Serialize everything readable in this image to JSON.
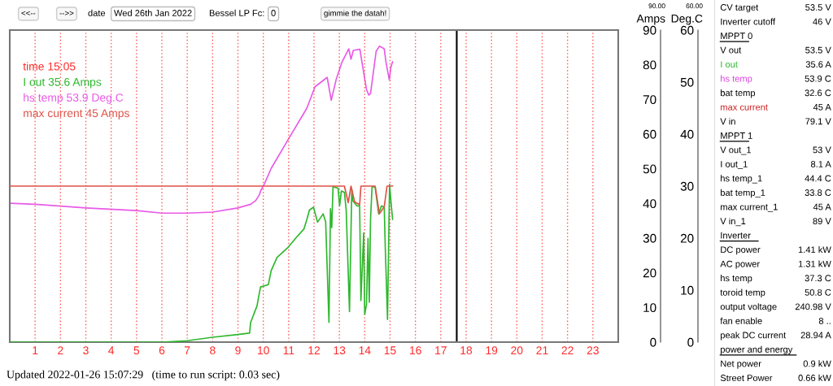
{
  "chart_data": [
    {
      "type": "line",
      "ylabel": "Amps",
      "y2label": "Deg.C",
      "legend_title": "time 15:05",
      "legend": "top left",
      "xlim": [
        0,
        24
      ],
      "xticks": [
        1,
        2,
        3,
        4,
        5,
        6,
        7,
        8,
        9,
        10,
        11,
        12,
        13,
        14,
        15,
        16,
        17,
        18,
        19,
        20,
        21,
        22,
        23
      ],
      "ylim": [
        0,
        90
      ],
      "yticks": [
        0,
        10,
        20,
        30,
        40,
        50,
        60,
        70,
        80,
        90
      ],
      "y2lim": [
        0,
        60
      ],
      "y2ticks": [
        0,
        10,
        20,
        30,
        40,
        50,
        60
      ],
      "grid": "x",
      "marker": "none",
      "line_style": "solid",
      "ref_lines": [
        {
          "axis": "x",
          "value": 17.63,
          "color": "#000000",
          "line_style": "solid"
        }
      ],
      "series": [
        {
          "name": "I out 35.6 Amps",
          "color": "#2db82d",
          "x": [
            0,
            6,
            7,
            8,
            9,
            9.46,
            9.5,
            9.75,
            9.89,
            10.2,
            10.31,
            10.54,
            10.96,
            11.28,
            11.6,
            11.72,
            11.82,
            11.98,
            12.14,
            12.36,
            12.46,
            12.59,
            12.65,
            12.7,
            12.75,
            12.95,
            13.01,
            13.08,
            13.2,
            13.27,
            13.4,
            13.49,
            13.53,
            13.69,
            13.8,
            13.85,
            13.96,
            14.0,
            14.07,
            14.13,
            14.18,
            14.23,
            14.29,
            14.41,
            14.55,
            14.66,
            14.77,
            14.81,
            14.9,
            14.98,
            15.05,
            15.1
          ],
          "values": [
            0,
            0,
            0.4,
            1.4,
            2.2,
            2.6,
            5.7,
            10.4,
            15.9,
            16.6,
            20.6,
            24.4,
            27.2,
            30,
            32.6,
            35.4,
            38.1,
            38.9,
            34.6,
            37,
            34.7,
            5.7,
            38.5,
            33,
            44.8,
            44.4,
            39.3,
            43.6,
            43.2,
            38,
            8.8,
            44,
            40.8,
            39.3,
            39.3,
            12,
            31.5,
            8,
            10.8,
            29.9,
            11.5,
            35.4,
            44.8,
            44.8,
            37,
            39.3,
            38.9,
            27.6,
            6.5,
            45.5,
            39.3,
            35.4
          ]
        },
        {
          "name": "hs temp 53.9 Deg.C",
          "color": "#e85ae8",
          "axis": "y2",
          "x": [
            0,
            1,
            3,
            5,
            6,
            7,
            8,
            9,
            9.5,
            9.7,
            9.84,
            9.9,
            10.05,
            10.31,
            10.95,
            11.72,
            12.04,
            12.52,
            12.68,
            12.88,
            13.1,
            13.37,
            13.46,
            13.55,
            13.81,
            13.91,
            14.07,
            14.16,
            14.23,
            14.45,
            14.58,
            14.77,
            14.84,
            14.97,
            15.03,
            15.1
          ],
          "values": [
            26.7,
            26.5,
            25.8,
            25.3,
            24.8,
            24.8,
            25.0,
            25.8,
            26.5,
            27.2,
            28.3,
            29.1,
            30.5,
            33.4,
            38.7,
            45,
            49.1,
            50.9,
            46.5,
            50.6,
            53.8,
            56.4,
            54.4,
            56.1,
            56.3,
            53.3,
            48.6,
            47.5,
            47.8,
            55.9,
            56.9,
            56.4,
            53.8,
            50.4,
            52.8,
            53.9
          ]
        },
        {
          "name": "max current 45 Amps",
          "color": "#e05248",
          "x": [
            0,
            13.2,
            13.35,
            13.46,
            13.6,
            13.8,
            13.85,
            14.41,
            14.58,
            14.77,
            14.88,
            15.1
          ],
          "values": [
            45,
            45,
            40.2,
            45,
            40.5,
            39.6,
            45,
            45,
            37,
            39,
            45,
            45
          ]
        }
      ],
      "annotations": [
        "<<--",
        "-->>",
        "date",
        "Wed 26th Jan 2022",
        "Bessel LP Fc:",
        "0",
        "gimmie the datah!",
        "90.00",
        "60.00",
        "Updated 2022-01-26 15:07:29   (time to run script: 0.03 sec)"
      ]
    },
    {
      "type": "other",
      "categories": [
        "CV target",
        "Inverter cutoff",
        "MPPT 0",
        "V out",
        "I out",
        "hs temp",
        "bat temp",
        "max current",
        "V in",
        "MPPT 1",
        "V out_1",
        "I out_1",
        "hs temp_1",
        "bat temp_1",
        "max current_1",
        "V in_1",
        "Inverter",
        "DC power",
        "AC power",
        "hs temp",
        "toroid temp",
        "output voltage",
        "fan enable",
        "peak DC current",
        "power and energy",
        "Net power",
        "Street Power"
      ],
      "value_labels": [
        "53.5 V",
        "46 V",
        null,
        "53.5 V",
        "35.6 A",
        "53.9 C",
        "32.6 C",
        "45 A",
        "79.1 V",
        null,
        "53 V",
        "8.1 A",
        "44.4 C",
        "33.8 C",
        "45 A",
        "89 V",
        null,
        "1.41 kW",
        "1.31 kW",
        "37.3 C",
        "50.8 C",
        "240.98 V",
        "8 ..",
        "28.94 A",
        null,
        "0.9 kW",
        "0.66 kW"
      ],
      "colors": [
        "#000000",
        "#000000",
        "#000000",
        "#000000",
        "#2db82d",
        "#dd44dd",
        "#000000",
        "#cc2222",
        "#000000",
        "#000000",
        "#000000",
        "#000000",
        "#000000",
        "#000000",
        "#000000",
        "#000000",
        "#000000",
        "#000000",
        "#000000",
        "#000000",
        "#000000",
        "#000000",
        "#000000",
        "#000000",
        "#000000",
        "#000000",
        "#000000"
      ]
    }
  ]
}
